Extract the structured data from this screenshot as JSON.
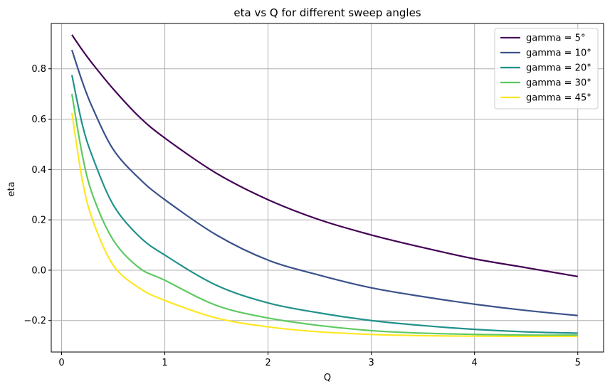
{
  "chart_data": {
    "type": "line",
    "title": "eta vs Q for different sweep angles",
    "xlabel": "Q",
    "ylabel": "eta",
    "xlim": [
      -0.1,
      5.25
    ],
    "ylim": [
      -0.325,
      0.98
    ],
    "xticks": [
      0,
      1,
      2,
      3,
      4,
      5
    ],
    "xtick_labels": [
      "0",
      "1",
      "2",
      "3",
      "4",
      "5"
    ],
    "yticks": [
      -0.2,
      0.0,
      0.2,
      0.4,
      0.6,
      0.8
    ],
    "ytick_labels": [
      "−0.2",
      "0.0",
      "0.2",
      "0.4",
      "0.6",
      "0.8"
    ],
    "grid": true,
    "legend_position": "top-right",
    "x": [
      0.1,
      0.2,
      0.3,
      0.5,
      0.75,
      1.0,
      1.5,
      2.0,
      2.5,
      3.0,
      3.5,
      4.0,
      4.5,
      5.0
    ],
    "series": [
      {
        "name": "gamma = 5°",
        "color": "#440154",
        "values": [
          0.935,
          0.875,
          0.82,
          0.72,
          0.61,
          0.525,
          0.385,
          0.28,
          0.2,
          0.14,
          0.09,
          0.045,
          0.01,
          -0.025
        ]
      },
      {
        "name": "gamma = 10°",
        "color": "#3b528b",
        "values": [
          0.875,
          0.75,
          0.645,
          0.48,
          0.365,
          0.28,
          0.14,
          0.04,
          -0.02,
          -0.07,
          -0.105,
          -0.135,
          -0.16,
          -0.18
        ]
      },
      {
        "name": "gamma = 20°",
        "color": "#21918c",
        "values": [
          0.775,
          0.58,
          0.45,
          0.26,
          0.135,
          0.06,
          -0.06,
          -0.13,
          -0.17,
          -0.2,
          -0.22,
          -0.235,
          -0.245,
          -0.25
        ]
      },
      {
        "name": "gamma = 30°",
        "color": "#5ec962",
        "values": [
          0.7,
          0.46,
          0.3,
          0.12,
          0.01,
          -0.04,
          -0.14,
          -0.19,
          -0.22,
          -0.24,
          -0.25,
          -0.255,
          -0.258,
          -0.258
        ]
      },
      {
        "name": "gamma = 45°",
        "color": "#fde725",
        "values": [
          0.625,
          0.36,
          0.2,
          0.02,
          -0.07,
          -0.12,
          -0.19,
          -0.225,
          -0.245,
          -0.255,
          -0.26,
          -0.262,
          -0.263,
          -0.263
        ]
      }
    ]
  }
}
